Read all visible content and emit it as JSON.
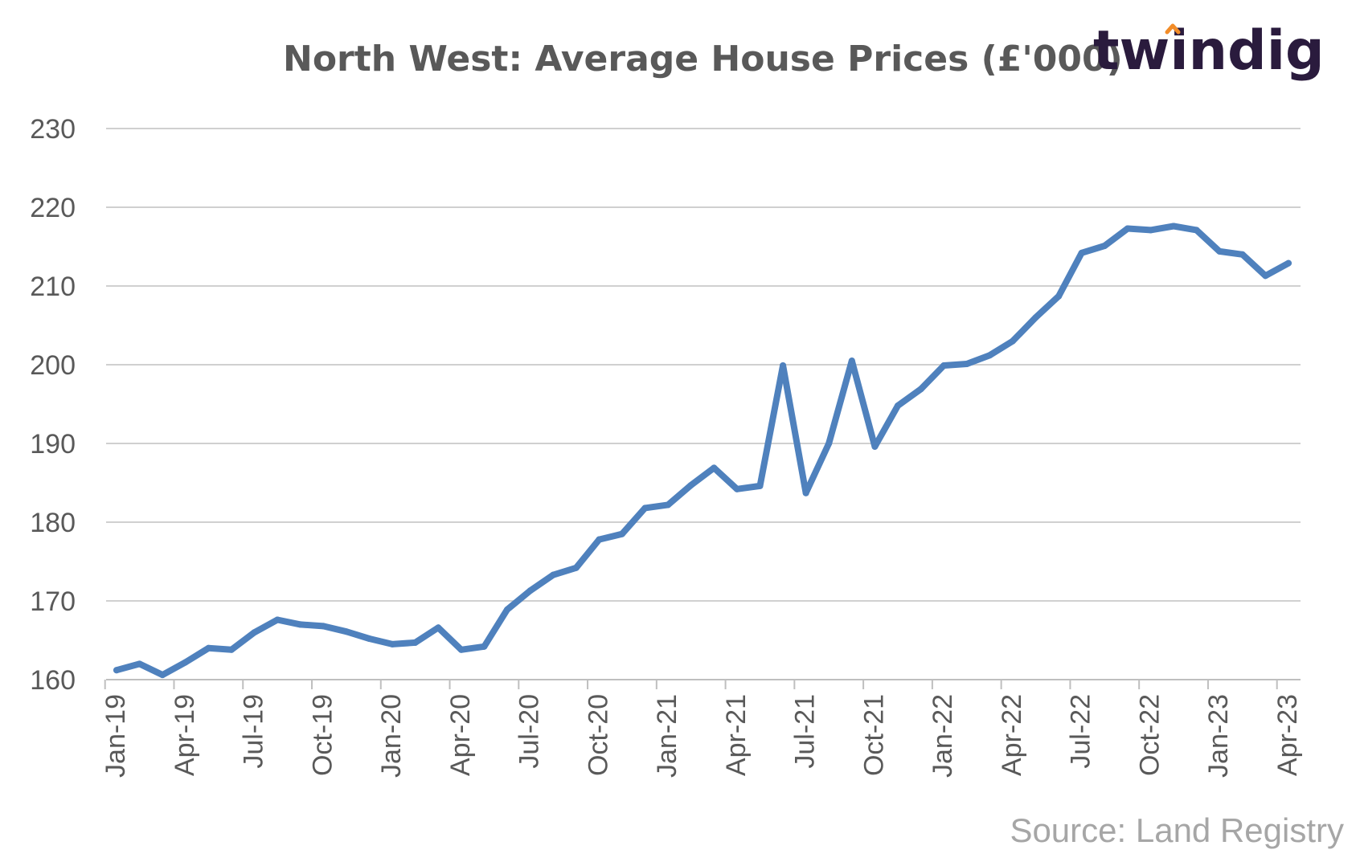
{
  "colors": {
    "line": "#4f81bd",
    "grid": "#d0d0d0",
    "axis": "#bfbfbf",
    "text": "#595959",
    "source": "#a6a6a6",
    "logo": "#2a1b3d",
    "logo_accent": "#f28c28"
  },
  "logo": {
    "text": "twindig",
    "accent_icon": "chevron-up-icon"
  },
  "source": "Source: Land Registry",
  "chart_data": {
    "type": "line",
    "title": "North West: Average House Prices (£'000)",
    "xlabel": "",
    "ylabel": "",
    "ylim": [
      160,
      230
    ],
    "yticks": [
      160,
      170,
      180,
      190,
      200,
      210,
      220,
      230
    ],
    "grid": true,
    "legend": "none",
    "x_tick_labels": [
      "Jan-19",
      "Apr-19",
      "Jul-19",
      "Oct-19",
      "Jan-20",
      "Apr-20",
      "Jul-20",
      "Oct-20",
      "Jan-21",
      "Apr-21",
      "Jul-21",
      "Oct-21",
      "Jan-22",
      "Apr-22",
      "Jul-22",
      "Oct-22",
      "Jan-23",
      "Apr-23"
    ],
    "x": [
      "Jan-19",
      "Feb-19",
      "Mar-19",
      "Apr-19",
      "May-19",
      "Jun-19",
      "Jul-19",
      "Aug-19",
      "Sep-19",
      "Oct-19",
      "Nov-19",
      "Dec-19",
      "Jan-20",
      "Feb-20",
      "Mar-20",
      "Apr-20",
      "May-20",
      "Jun-20",
      "Jul-20",
      "Aug-20",
      "Sep-20",
      "Oct-20",
      "Nov-20",
      "Dec-20",
      "Jan-21",
      "Feb-21",
      "Mar-21",
      "Apr-21",
      "May-21",
      "Jun-21",
      "Jul-21",
      "Aug-21",
      "Sep-21",
      "Oct-21",
      "Nov-21",
      "Dec-21",
      "Jan-22",
      "Feb-22",
      "Mar-22",
      "Apr-22",
      "May-22",
      "Jun-22",
      "Jul-22",
      "Aug-22",
      "Sep-22",
      "Oct-22",
      "Nov-22",
      "Dec-22",
      "Jan-23",
      "Feb-23",
      "Mar-23",
      "Apr-23"
    ],
    "series": [
      {
        "values": [
          161.2,
          162.0,
          160.6,
          162.2,
          164.0,
          163.8,
          166.0,
          167.6,
          167.0,
          166.8,
          166.1,
          165.2,
          164.5,
          164.7,
          166.6,
          163.8,
          164.2,
          168.9,
          171.3,
          173.3,
          174.2,
          177.8,
          178.5,
          181.8,
          182.2,
          184.7,
          186.9,
          184.2,
          184.6,
          199.9,
          183.7,
          190.0,
          200.5,
          189.6,
          194.8,
          196.9,
          199.9,
          200.1,
          201.2,
          203.0,
          206.0,
          208.7,
          214.2,
          215.1,
          217.3,
          217.1,
          217.6,
          217.1,
          214.4,
          214.0,
          211.3,
          212.9
        ]
      }
    ]
  }
}
